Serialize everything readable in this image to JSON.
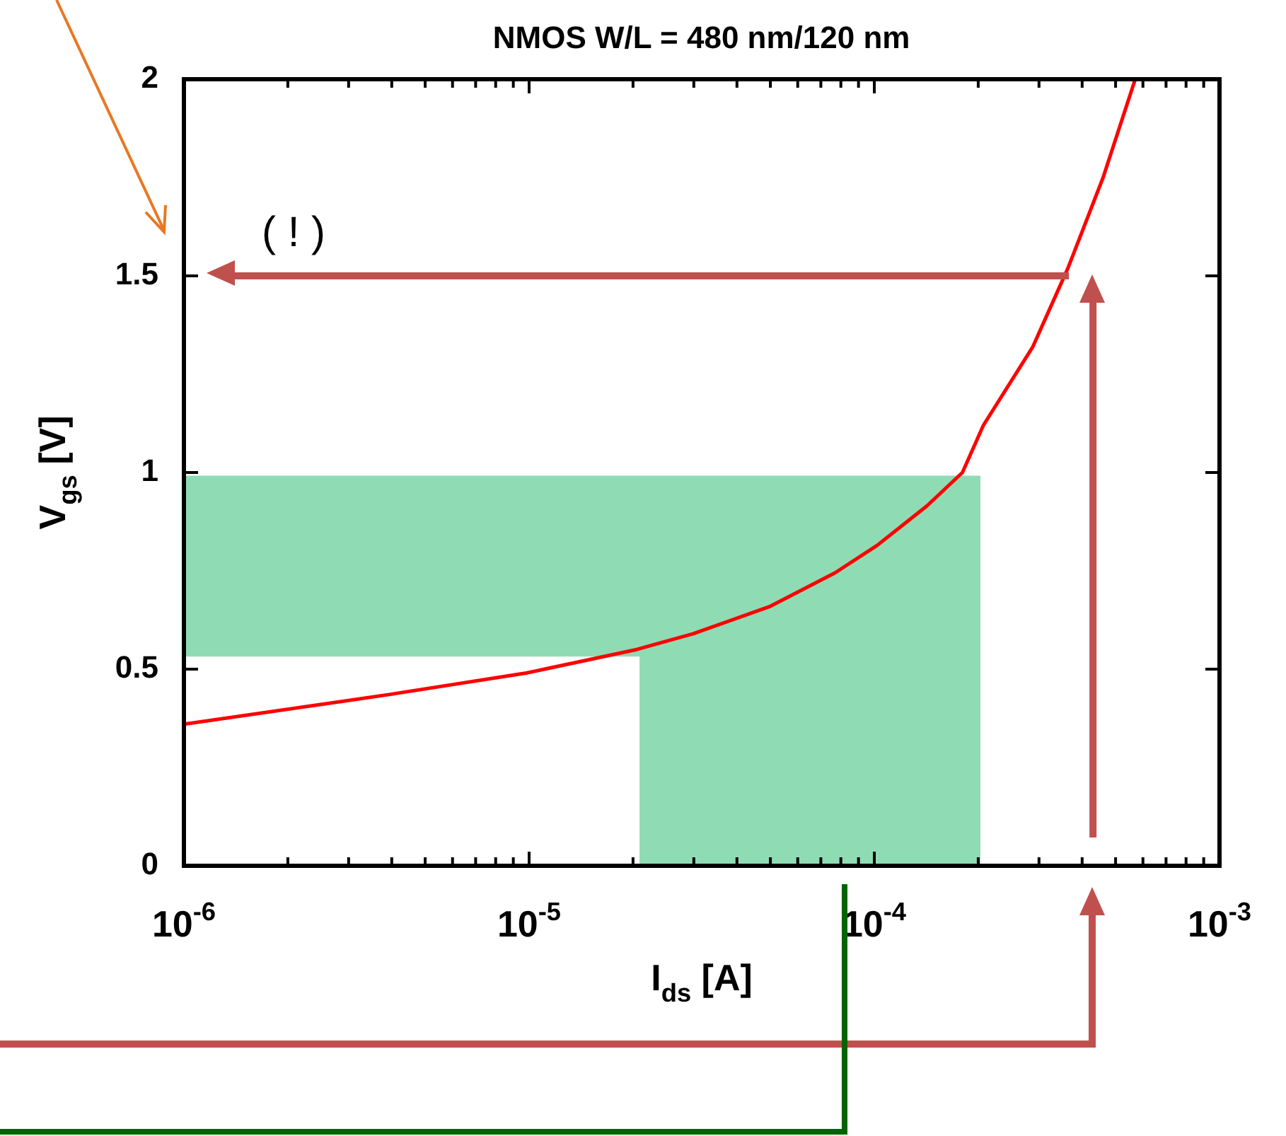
{
  "chart_data": {
    "type": "line",
    "title": "NMOS W/L = 480 nm/120 nm",
    "xlabel": "I$_{ds}$ [A]",
    "ylabel": "V$_{gs}$ [V]",
    "log": "x",
    "grid": false,
    "legend": false,
    "marker": "none",
    "line_style": "solid",
    "xlim": [
      1e-06,
      0.001
    ],
    "ylim": [
      0,
      2
    ],
    "xticks": [
      {
        "value": 1e-06,
        "label": "10$^{-6}$"
      },
      {
        "value": 2e-06,
        "label": null
      },
      {
        "value": 3e-06,
        "label": null
      },
      {
        "value": 4e-06,
        "label": null
      },
      {
        "value": 5e-06,
        "label": null
      },
      {
        "value": 6e-06,
        "label": null
      },
      {
        "value": 7e-06,
        "label": null
      },
      {
        "value": 8e-06,
        "label": null
      },
      {
        "value": 9e-06,
        "label": null
      },
      {
        "value": 1e-05,
        "label": "10$^{-5}$"
      },
      {
        "value": 2e-05,
        "label": null
      },
      {
        "value": 3e-05,
        "label": null
      },
      {
        "value": 4e-05,
        "label": null
      },
      {
        "value": 5e-05,
        "label": null
      },
      {
        "value": 6e-05,
        "label": null
      },
      {
        "value": 7e-05,
        "label": null
      },
      {
        "value": 8e-05,
        "label": null
      },
      {
        "value": 9e-05,
        "label": null
      },
      {
        "value": 0.0001,
        "label": "10$^{-4}$"
      },
      {
        "value": 0.0002,
        "label": null
      },
      {
        "value": 0.0003,
        "label": null
      },
      {
        "value": 0.0004,
        "label": null
      },
      {
        "value": 0.0005,
        "label": null
      },
      {
        "value": 0.0006,
        "label": null
      },
      {
        "value": 0.0007,
        "label": null
      },
      {
        "value": 0.0008,
        "label": null
      },
      {
        "value": 0.0009,
        "label": null
      },
      {
        "value": 0.001,
        "label": "10$^{-3}$"
      }
    ],
    "yticks": [
      0,
      0.5,
      1,
      1.5,
      2
    ],
    "annotations": [
      "( ! )"
    ],
    "ref_lines": [
      {
        "axis": "y",
        "value": 1.5,
        "color": "#c0504d"
      },
      {
        "axis": "x",
        "value": 0.00043,
        "color": "#c0504d"
      }
    ],
    "series": [
      {
        "type": "area",
        "color": "#8fdcb4",
        "x": [
          1e-06,
          0.000203
        ],
        "values": [
          0.99,
          0.99
        ]
      },
      {
        "type": "area",
        "color": "#ffffff",
        "x": [
          1e-06,
          2.09e-05
        ],
        "values": [
          0.53,
          0.53
        ]
      },
      {
        "color": "#ff0000",
        "x": [
          1e-06,
          3.9e-06,
          9.8e-06,
          2.05e-05,
          2.99e-05,
          5e-05,
          7.7e-05,
          0.000102,
          0.000142,
          0.00018,
          0.000207,
          0.000288,
          0.000364,
          0.00046,
          0.00057
        ],
        "values": [
          0.36,
          0.435,
          0.49,
          0.55,
          0.59,
          0.66,
          0.745,
          0.815,
          0.915,
          1.0,
          1.12,
          1.32,
          1.52,
          1.75,
          2.0
        ]
      }
    ]
  }
}
